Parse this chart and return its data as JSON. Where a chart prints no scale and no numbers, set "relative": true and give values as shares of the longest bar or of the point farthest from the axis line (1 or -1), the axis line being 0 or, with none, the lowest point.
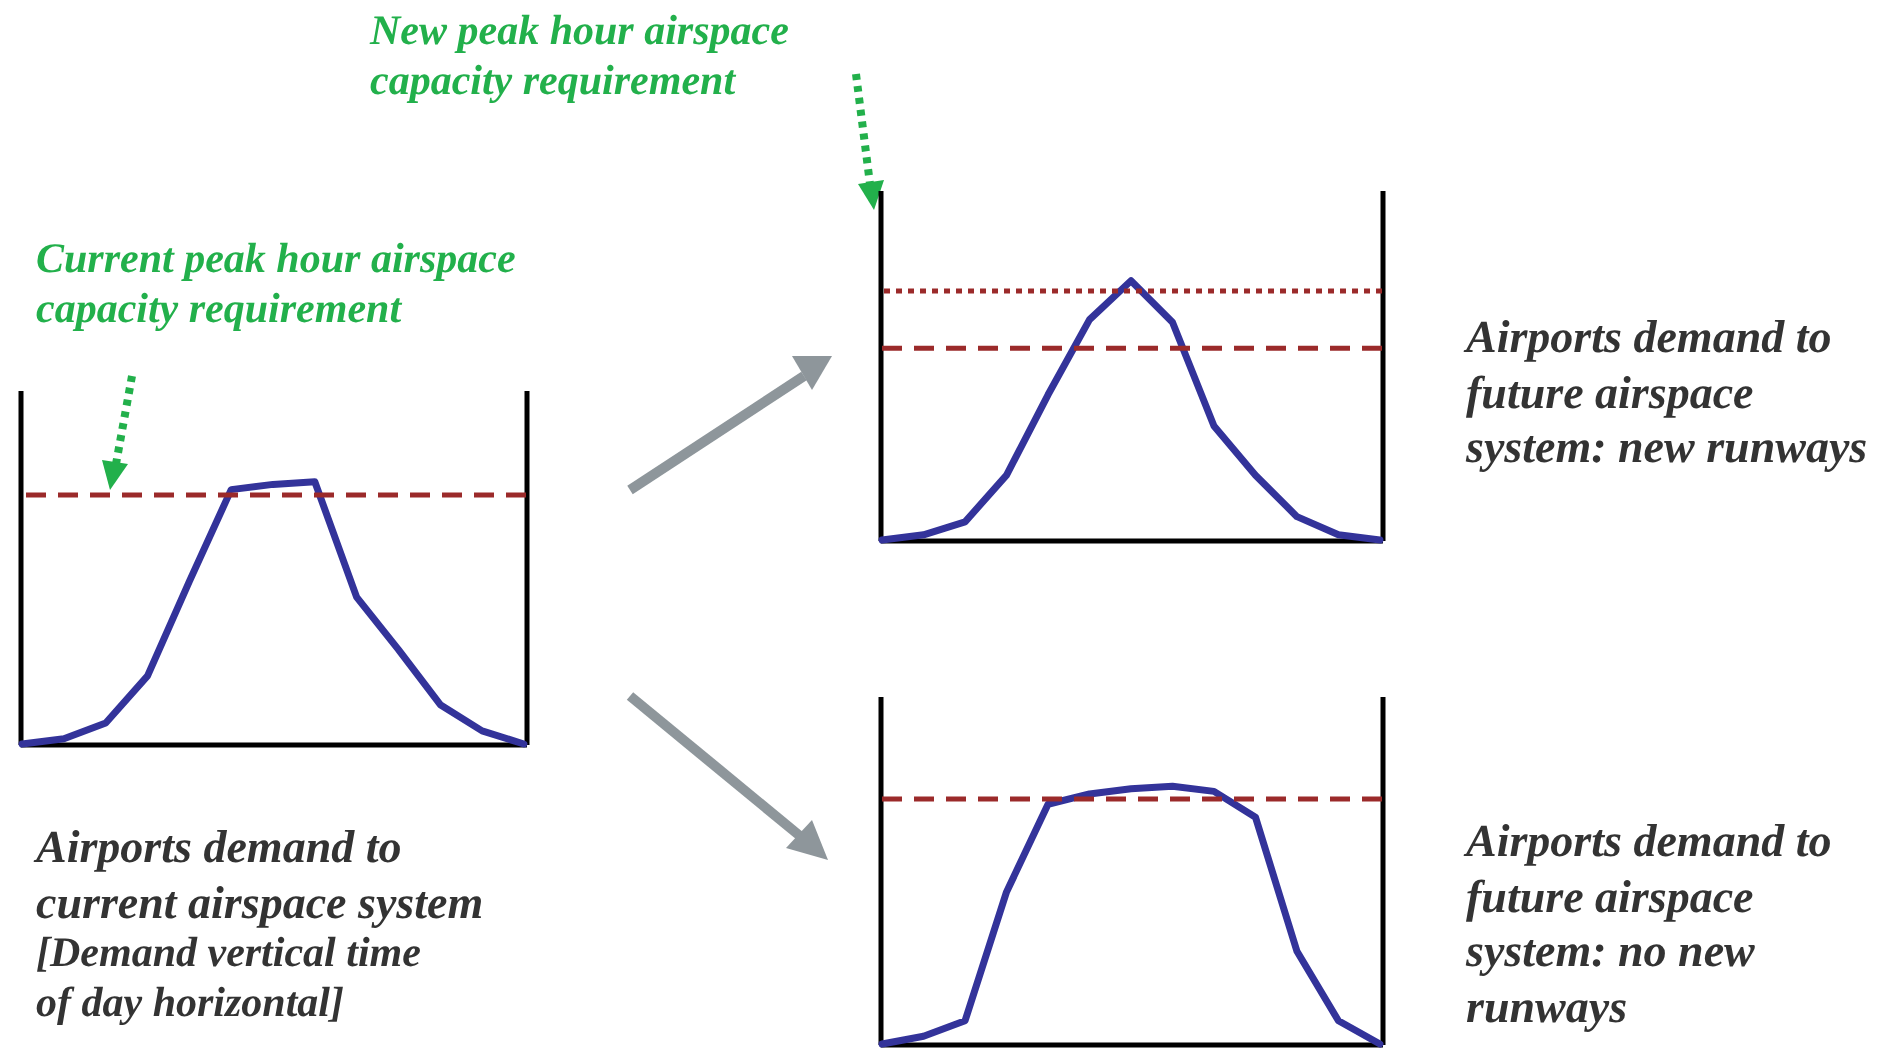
{
  "chart_data": [
    {
      "type": "line",
      "relative": true,
      "categories": [
        null,
        null,
        null,
        null,
        null,
        null,
        null,
        null,
        null,
        null,
        null,
        null,
        null
      ],
      "grid": false,
      "marker": "none",
      "line_style": "solid",
      "series": [
        {
          "color": "#33339a",
          "values": [
            0,
            0.02,
            0.08,
            0.26,
            0.62,
            0.97,
            0.99,
            1,
            0.56,
            0.36,
            0.15,
            0.05,
            0
          ]
        }
      ],
      "ref_lines": [
        {
          "axis": "y",
          "value": 0.95,
          "color": "#9b2a2a",
          "line_style": "dashed"
        }
      ],
      "annotations": [
        "Current peak hour airspace capacity requirement",
        "Airports demand to current airspace system",
        "[Demand vertical time of day horizontal]"
      ]
    },
    {
      "type": "line",
      "relative": true,
      "categories": [
        null,
        null,
        null,
        null,
        null,
        null,
        null,
        null,
        null,
        null,
        null,
        null,
        null
      ],
      "grid": false,
      "marker": "none",
      "line_style": "solid",
      "series": [
        {
          "color": "#33339a",
          "values": [
            0,
            0.02,
            0.07,
            0.25,
            0.56,
            0.85,
            1,
            0.84,
            0.44,
            0.25,
            0.09,
            0.02,
            0
          ]
        }
      ],
      "ref_lines": [
        {
          "axis": "y",
          "value": 0.74,
          "color": "#9b2a2a",
          "line_style": "dashed"
        },
        {
          "axis": "y",
          "value": 0.96,
          "color": "#9b2a2a",
          "line_style": "dotted"
        }
      ],
      "annotations": [
        "New peak hour airspace capacity requirement",
        "Airports demand to future airspace system: new runways"
      ]
    },
    {
      "type": "line",
      "relative": true,
      "categories": [
        null,
        null,
        null,
        null,
        null,
        null,
        null,
        null,
        null,
        null,
        null,
        null,
        null
      ],
      "grid": false,
      "marker": "none",
      "line_style": "solid",
      "series": [
        {
          "color": "#33339a",
          "values": [
            0,
            0.03,
            0.09,
            0.59,
            0.93,
            0.97,
            0.99,
            1,
            0.98,
            0.88,
            0.36,
            0.09,
            0
          ]
        }
      ],
      "ref_lines": [
        {
          "axis": "y",
          "value": 0.95,
          "color": "#9b2a2a",
          "line_style": "dashed"
        }
      ],
      "annotations": [
        "Airports demand to future airspace system: no new runways"
      ]
    }
  ]
}
